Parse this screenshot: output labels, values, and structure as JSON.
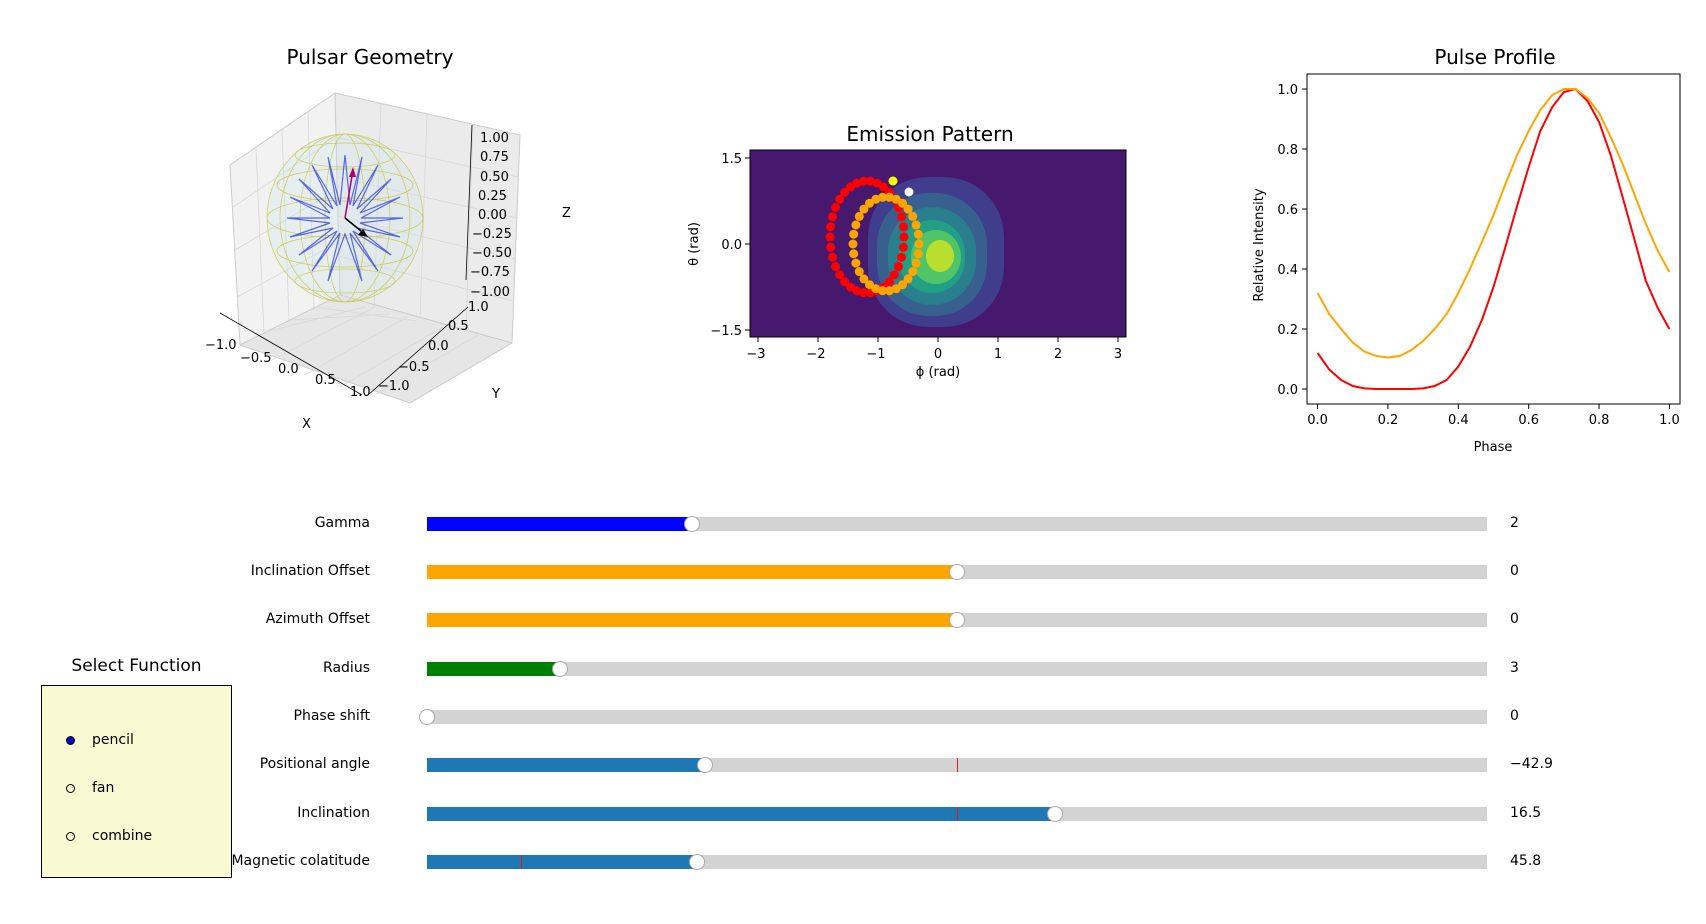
{
  "panels": {
    "geometry": {
      "title": "Pulsar Geometry",
      "x_ticks": [
        "−1.0",
        "−0.5",
        "0.0",
        "0.5",
        "1.0"
      ],
      "y_ticks": [
        "−1.0",
        "−0.5",
        "0.0",
        "0.5",
        "1.0"
      ],
      "z_ticks": [
        "1.00",
        "0.75",
        "0.50",
        "0.25",
        "0.00",
        "−0.25",
        "−0.50",
        "−0.75",
        "−1.00"
      ],
      "xlabel": "X",
      "ylabel": "Y",
      "zlabel": "Z"
    },
    "emission": {
      "title": "Emission Pattern",
      "xlabel": "ϕ (rad)",
      "ylabel": "θ (rad)",
      "x_ticks": [
        "−3",
        "−2",
        "−1",
        "0",
        "1",
        "2",
        "3"
      ],
      "y_ticks": [
        "1.5",
        "0.0",
        "−1.5"
      ]
    },
    "profile": {
      "title": "Pulse Profile",
      "xlabel": "Phase",
      "ylabel": "Relative Intensity"
    }
  },
  "chart_data": [
    {
      "type": "line",
      "title": "Pulse Profile",
      "xlabel": "Phase",
      "ylabel": "Relative Intensity",
      "xlim": [
        -0.03,
        1.03
      ],
      "ylim": [
        -0.05,
        1.05
      ],
      "x_ticks": [
        "0.0",
        "0.2",
        "0.4",
        "0.6",
        "0.8",
        "1.0"
      ],
      "y_ticks": [
        "0.0",
        "0.2",
        "0.4",
        "0.6",
        "0.8",
        "1.0"
      ],
      "x": [
        0.0,
        0.033,
        0.067,
        0.1,
        0.133,
        0.167,
        0.2,
        0.233,
        0.267,
        0.3,
        0.333,
        0.367,
        0.4,
        0.433,
        0.467,
        0.5,
        0.533,
        0.567,
        0.6,
        0.633,
        0.667,
        0.7,
        0.733,
        0.767,
        0.8,
        0.833,
        0.867,
        0.9,
        0.933,
        0.967,
        1.0
      ],
      "series": [
        {
          "color": "#ff0000",
          "values": [
            0.12,
            0.065,
            0.03,
            0.01,
            0.002,
            0.0,
            0.0,
            0.0,
            0.0,
            0.002,
            0.01,
            0.03,
            0.075,
            0.14,
            0.23,
            0.34,
            0.47,
            0.61,
            0.74,
            0.86,
            0.94,
            0.99,
            1.0,
            0.96,
            0.89,
            0.78,
            0.64,
            0.5,
            0.36,
            0.27,
            0.2
          ]
        },
        {
          "color": "#ffa500",
          "values": [
            0.32,
            0.25,
            0.2,
            0.155,
            0.125,
            0.11,
            0.105,
            0.11,
            0.13,
            0.16,
            0.2,
            0.25,
            0.32,
            0.4,
            0.49,
            0.58,
            0.68,
            0.78,
            0.86,
            0.93,
            0.98,
            1.0,
            1.0,
            0.97,
            0.92,
            0.84,
            0.75,
            0.65,
            0.55,
            0.46,
            0.39
          ]
        }
      ]
    }
  ],
  "sliders": [
    {
      "label": "Gamma",
      "value": "2",
      "fraction": 0.25,
      "color": "#0000ff",
      "init_fraction": null
    },
    {
      "label": "Inclination Offset",
      "value": "0",
      "fraction": 0.5,
      "color": "#ffa500",
      "init_fraction": null
    },
    {
      "label": "Azimuth Offset",
      "value": "0",
      "fraction": 0.5,
      "color": "#ffa500",
      "init_fraction": null
    },
    {
      "label": "Radius",
      "value": "3",
      "fraction": 0.125,
      "color": "#008000",
      "init_fraction": null
    },
    {
      "label": "Phase shift",
      "value": "0",
      "fraction": 0.0,
      "color": "#1f77b4",
      "init_fraction": null
    },
    {
      "label": "Positional angle",
      "value": "−42.9",
      "fraction": 0.262,
      "color": "#1f77b4",
      "init_fraction": 0.5
    },
    {
      "label": "Inclination",
      "value": "16.5",
      "fraction": 0.592,
      "color": "#1f77b4",
      "init_fraction": 0.5
    },
    {
      "label": "Magnetic colatitude",
      "value": "45.8",
      "fraction": 0.255,
      "color": "#1f77b4",
      "init_fraction": 0.089
    }
  ],
  "radio": {
    "title": "Select Function",
    "options": [
      "pencil",
      "fan",
      "combine"
    ],
    "selected": "pencil"
  }
}
